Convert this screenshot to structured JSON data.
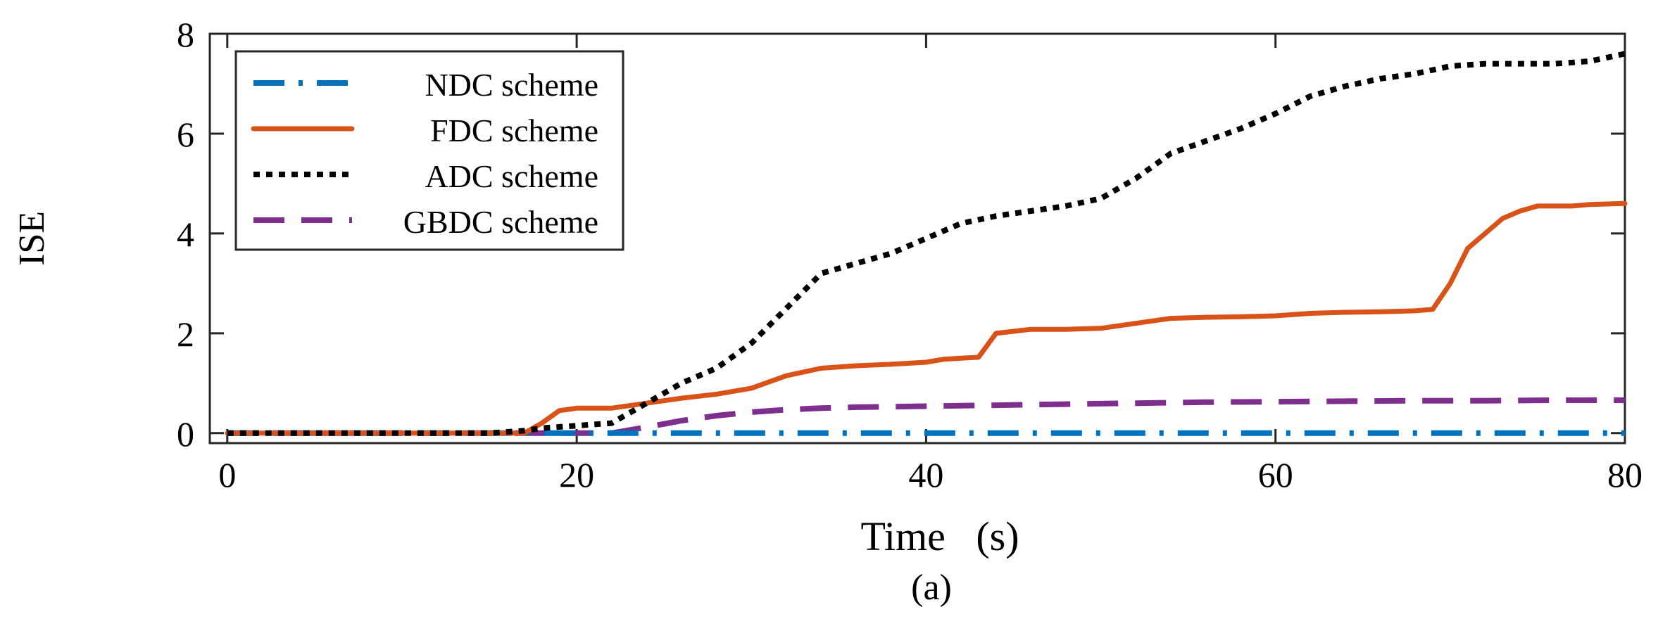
{
  "chart_data": {
    "type": "line",
    "title": "",
    "xlabel": "Time   (s)",
    "ylabel": "ISE",
    "caption": "(a)",
    "xlim": [
      -1,
      80
    ],
    "ylim": [
      -0.2,
      8
    ],
    "xticks": [
      0,
      20,
      40,
      60,
      80
    ],
    "yticks": [
      0,
      2,
      4,
      6,
      8
    ],
    "xtick_labels": [
      "0",
      "20",
      "40",
      "60",
      "80"
    ],
    "ytick_labels": [
      "0",
      "2",
      "4",
      "6",
      "8"
    ],
    "grid": false,
    "legend_position": "top-left",
    "series": [
      {
        "name": "NDC scheme",
        "color": "#0072BD",
        "style": "dash-dot",
        "x": [
          0,
          80
        ],
        "y": [
          0,
          0
        ]
      },
      {
        "name": "FDC scheme",
        "color": "#D95319",
        "style": "solid",
        "x": [
          0,
          17,
          18,
          19,
          20,
          22,
          24,
          26,
          28,
          30,
          32,
          34,
          36,
          38,
          40,
          41,
          42,
          43,
          44,
          46,
          48,
          50,
          52,
          54,
          56,
          58,
          60,
          62,
          64,
          66,
          68,
          69,
          70,
          71,
          72,
          73,
          74,
          75,
          76,
          77,
          78,
          80
        ],
        "y": [
          0,
          0,
          0.2,
          0.45,
          0.5,
          0.5,
          0.6,
          0.7,
          0.78,
          0.9,
          1.15,
          1.3,
          1.35,
          1.38,
          1.42,
          1.48,
          1.5,
          1.52,
          2.0,
          2.08,
          2.08,
          2.1,
          2.2,
          2.3,
          2.32,
          2.33,
          2.35,
          2.4,
          2.42,
          2.43,
          2.45,
          2.48,
          3.0,
          3.7,
          4.0,
          4.3,
          4.45,
          4.55,
          4.55,
          4.55,
          4.58,
          4.6
        ]
      },
      {
        "name": "ADC scheme",
        "color": "#000000",
        "style": "dotted",
        "x": [
          0,
          15,
          17,
          18,
          20,
          22,
          24,
          26,
          28,
          30,
          32,
          34,
          36,
          38,
          40,
          42,
          44,
          46,
          48,
          50,
          52,
          54,
          56,
          58,
          60,
          62,
          64,
          66,
          68,
          70,
          72,
          74,
          76,
          78,
          80
        ],
        "y": [
          0,
          0,
          0.05,
          0.1,
          0.15,
          0.2,
          0.6,
          1.0,
          1.3,
          1.8,
          2.5,
          3.2,
          3.4,
          3.6,
          3.9,
          4.2,
          4.35,
          4.45,
          4.55,
          4.7,
          5.1,
          5.6,
          5.85,
          6.1,
          6.4,
          6.75,
          6.95,
          7.1,
          7.2,
          7.35,
          7.4,
          7.4,
          7.4,
          7.45,
          7.6
        ]
      },
      {
        "name": "GBDC scheme",
        "color": "#7E2F8E",
        "style": "dashed",
        "x": [
          0,
          22,
          24,
          26,
          28,
          30,
          32,
          34,
          36,
          40,
          44,
          48,
          52,
          56,
          60,
          64,
          68,
          72,
          76,
          80
        ],
        "y": [
          0,
          0,
          0.12,
          0.25,
          0.35,
          0.42,
          0.47,
          0.5,
          0.52,
          0.54,
          0.56,
          0.58,
          0.6,
          0.62,
          0.63,
          0.64,
          0.65,
          0.65,
          0.66,
          0.66
        ]
      }
    ]
  }
}
